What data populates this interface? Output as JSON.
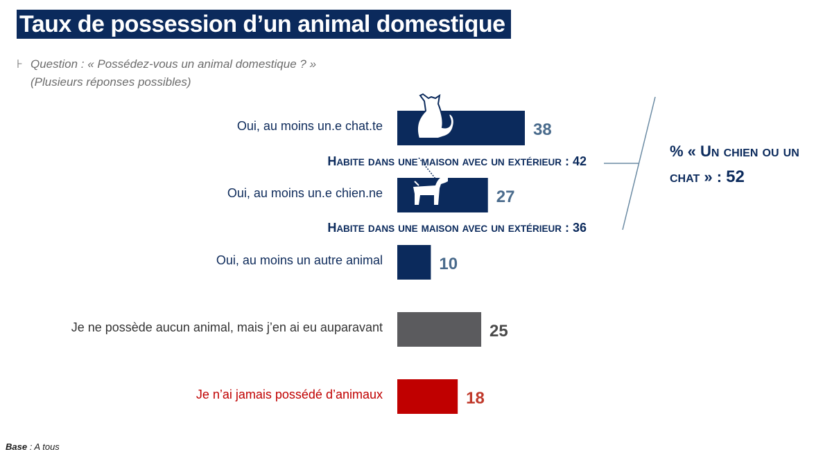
{
  "page": {
    "title": "Taux de possession d’un animal domestique",
    "question": "Question : « Possédez-vous un animal domestique ? »",
    "question_note": "(Plusieurs réponses possibles)",
    "bullet_glyph": "⊦",
    "base_label": "Base",
    "base_value": " : A tous"
  },
  "chart_data": {
    "type": "bar",
    "orientation": "horizontal",
    "categories": [
      "Oui, au moins un.e chat.te",
      "Oui, au moins un.e chien.ne",
      "Oui, au moins un autre animal",
      "Je ne possède aucun animal, mais j’en ai eu auparavant",
      "Je n’ai jamais possédé d’animaux"
    ],
    "values": [
      38,
      27,
      10,
      25,
      18
    ],
    "colors": [
      "#0b2a5c",
      "#0b2a5c",
      "#0b2a5c",
      "#5b5b5e",
      "#c00000"
    ],
    "label_colors": [
      "#0d2a5a",
      "#0d2a5a",
      "#0d2a5a",
      "#333333",
      "#c00000"
    ],
    "value_colors": [
      "#4a6b8c",
      "#4a6b8c",
      "#4a6b8c",
      "#4a4a4a",
      "#c0392b"
    ],
    "icons": [
      "cat-icon",
      "dog-icon",
      "",
      "",
      ""
    ],
    "annotations": [
      {
        "after_index": 0,
        "text": "Habite dans une maison avec un extérieur : 42"
      },
      {
        "after_index": 1,
        "text": "Habite dans une maison avec un extérieur : 36"
      }
    ],
    "callout": {
      "line1": "% « Un chien ou un",
      "line2": "chat » : ",
      "value": "52",
      "color": "#0b2a5c",
      "bracket_color": "#6a8aa3"
    }
  }
}
